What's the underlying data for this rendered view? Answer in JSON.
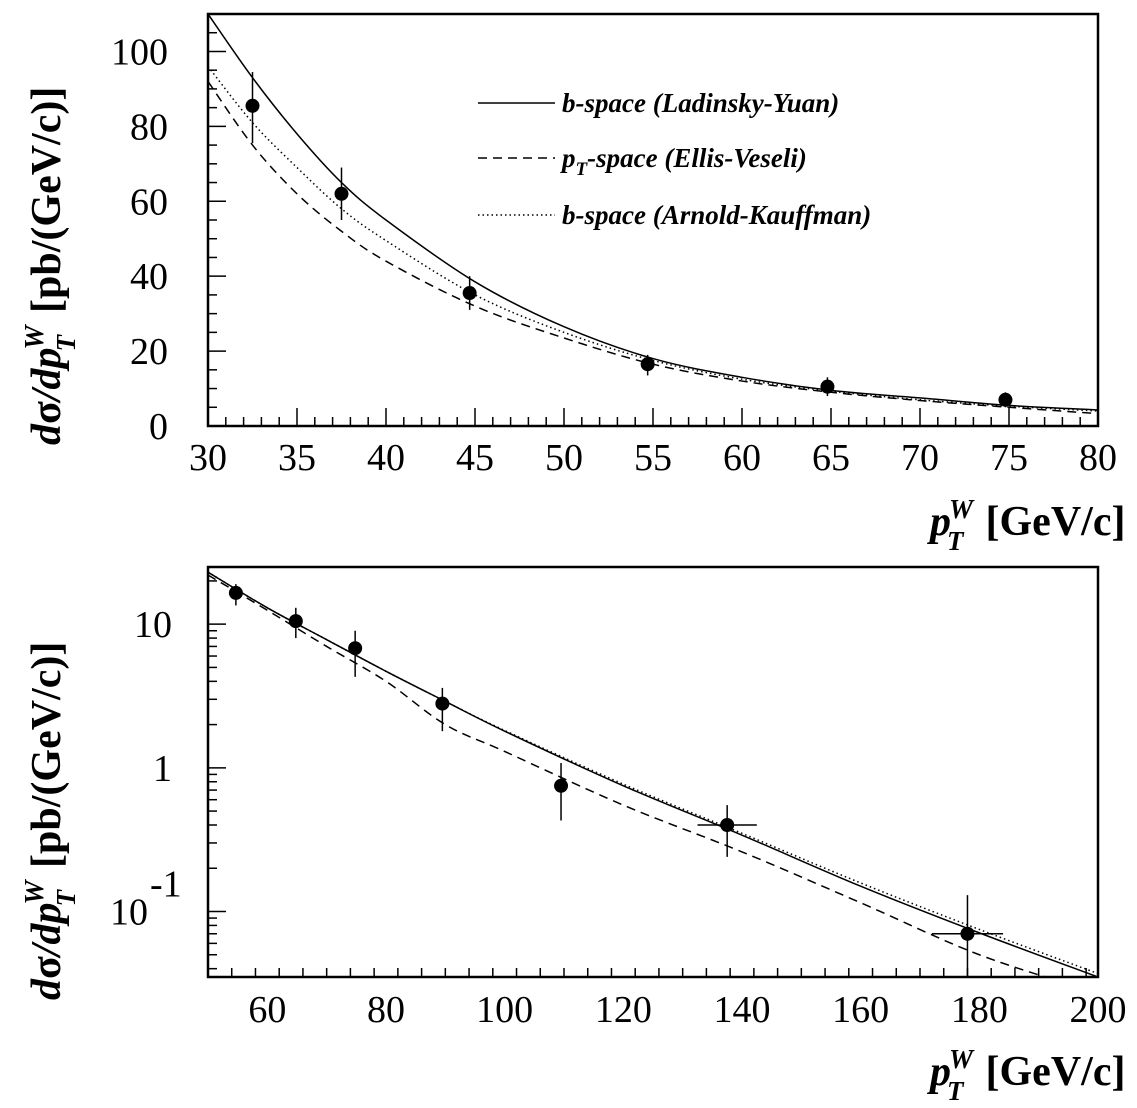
{
  "chart_data": [
    {
      "type": "scatter",
      "xlim": [
        30,
        80
      ],
      "ylim": [
        0,
        110
      ],
      "yscale": "linear",
      "xticks": [
        30,
        35,
        40,
        45,
        50,
        55,
        60,
        65,
        70,
        75,
        80
      ],
      "yticks": [
        0,
        20,
        40,
        60,
        80,
        100
      ],
      "xlabel": {
        "main": "p",
        "sup": "W",
        "sub": "T",
        "unit": "[GeV/c]"
      },
      "ylabel": {
        "d": "d",
        "sigma": "σ",
        "dp": "/dp",
        "sup": "W",
        "sub": "T",
        "unit": "[pb/(GeV/c)]"
      },
      "legend_position": "top-right",
      "data": [
        {
          "x": 32.5,
          "y": 85.5,
          "yerr": [
            10,
            9
          ],
          "xerr": 0
        },
        {
          "x": 37.5,
          "y": 62,
          "yerr": [
            7,
            7
          ],
          "xerr": 0
        },
        {
          "x": 44.7,
          "y": 35.5,
          "yerr": [
            4.5,
            4.5
          ],
          "xerr": 0
        },
        {
          "x": 54.7,
          "y": 16.5,
          "yerr": [
            3,
            2.5
          ],
          "xerr": 0
        },
        {
          "x": 64.8,
          "y": 10.5,
          "yerr": [
            2.5,
            2.5
          ],
          "xerr": 0
        },
        {
          "x": 74.8,
          "y": 7,
          "yerr": [
            2,
            2
          ],
          "xerr": 0
        }
      ],
      "series": [
        {
          "name": "b-space (Ladinsky-Yuan)",
          "style": "solid",
          "x": [
            30,
            32.5,
            35,
            37.5,
            40,
            45,
            50,
            55,
            60,
            65,
            70,
            75,
            80
          ],
          "y": [
            110,
            93,
            78,
            65,
            55,
            38.5,
            26.5,
            18,
            13,
            9.5,
            7.5,
            5.5,
            4.3
          ]
        },
        {
          "name": "p-space (Ellis-Veseli)",
          "style": "dashed",
          "x": [
            30,
            32.5,
            35,
            37.5,
            40,
            45,
            50,
            55,
            60,
            65,
            70,
            75,
            80
          ],
          "y": [
            92,
            75,
            62,
            52,
            44,
            32,
            23.5,
            16.5,
            12,
            9,
            6.8,
            5,
            3.3
          ]
        },
        {
          "name": "b-space (Arnold-Kauffman)",
          "style": "dotted",
          "x": [
            30,
            32.5,
            35,
            37.5,
            40,
            45,
            50,
            55,
            60,
            65,
            70,
            75,
            80
          ],
          "y": [
            96,
            81,
            69,
            58,
            49.5,
            35,
            25,
            17.5,
            12.5,
            9.3,
            7,
            5.3,
            4
          ]
        }
      ]
    },
    {
      "type": "scatter",
      "xlim": [
        50,
        200
      ],
      "ylim": [
        0.035,
        25
      ],
      "yscale": "log",
      "xticks": [
        60,
        80,
        100,
        120,
        140,
        160,
        180,
        200
      ],
      "yticks": [
        {
          "value": 10,
          "base": "10",
          "exp": ""
        },
        {
          "value": 1,
          "base": "1",
          "exp": ""
        },
        {
          "value": 0.1,
          "base": "10",
          "exp": "-1"
        }
      ],
      "xlabel": {
        "main": "p",
        "sup": "W",
        "sub": "T",
        "unit": "[GeV/c]"
      },
      "ylabel": {
        "d": "d",
        "sigma": "σ",
        "dp": "/dp",
        "sup": "W",
        "sub": "T",
        "unit": "[pb/(GeV/c)]"
      },
      "data": [
        {
          "x": 54.7,
          "y": 16.5,
          "yerr": [
            3,
            2.5
          ],
          "xerr": 0
        },
        {
          "x": 64.8,
          "y": 10.5,
          "yerr": [
            2.5,
            2.5
          ],
          "xerr": 0
        },
        {
          "x": 74.8,
          "y": 6.8,
          "yerr": [
            2.5,
            2.2
          ],
          "xerr": 0
        },
        {
          "x": 89.5,
          "y": 2.8,
          "yerr": [
            1,
            0.8
          ],
          "xerr": 0
        },
        {
          "x": 109.5,
          "y": 0.75,
          "yerr": [
            0.32,
            0.33
          ],
          "xerr": 0
        },
        {
          "x": 137.5,
          "y": 0.4,
          "yerr": [
            0.16,
            0.15
          ],
          "xerr": 5
        },
        {
          "x": 178,
          "y": 0.07,
          "yerr": [
            0.035,
            0.06
          ],
          "xerr": 6
        }
      ],
      "series": [
        {
          "name": "b-space (Ladinsky-Yuan)",
          "style": "solid",
          "x": [
            50,
            60,
            70,
            80,
            90,
            100,
            120,
            140,
            160,
            180,
            200
          ],
          "y": [
            23,
            13,
            7.8,
            4.7,
            2.9,
            1.8,
            0.75,
            0.34,
            0.15,
            0.071,
            0.035
          ]
        },
        {
          "name": "p-space (Ellis-Veseli)",
          "style": "dashed",
          "x": [
            50,
            60,
            70,
            80,
            90,
            100,
            120,
            140,
            160,
            180,
            200
          ],
          "y": [
            22,
            12.5,
            7,
            4,
            2,
            1.3,
            0.55,
            0.26,
            0.115,
            0.05,
            0.027
          ]
        },
        {
          "name": "b-space (Arnold-Kauffman)",
          "style": "dotted",
          "x": [
            50,
            60,
            70,
            80,
            90,
            100,
            120,
            140,
            160,
            180,
            200
          ],
          "y": [
            23,
            13,
            7.8,
            4.7,
            2.9,
            1.82,
            0.77,
            0.35,
            0.158,
            0.075,
            0.037
          ]
        }
      ]
    }
  ]
}
